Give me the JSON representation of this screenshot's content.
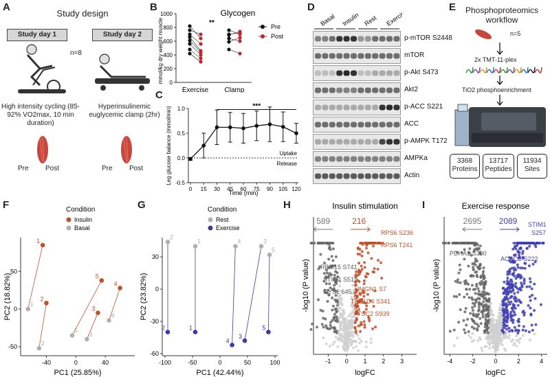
{
  "panels": {
    "A": "A",
    "B": "B",
    "C": "C",
    "D": "D",
    "E": "E",
    "F": "F",
    "G": "G",
    "H": "H",
    "I": "I"
  },
  "panelA": {
    "title": "Study design",
    "day1": "Study day 1",
    "day2": "Study day 2",
    "n": "n=8",
    "day1_desc": "High intensity cycling (85-92% VO2max, 10 min duration)",
    "day2_desc": "Hyperinsulinemic euglycemic clamp (2hr)",
    "pre": "Pre",
    "post": "Post"
  },
  "panelE": {
    "title": "Phosphoproteomics workflow",
    "n": "n=5",
    "step1": "2x TMT-11-plex",
    "step2": "TiO2 phosphoenrichment",
    "stats": [
      {
        "value": "3368",
        "label": "Proteins"
      },
      {
        "value": "13717",
        "label": "Peptides"
      },
      {
        "value": "11934",
        "label": "Sites"
      }
    ]
  },
  "panelD": {
    "groups": [
      "Basal",
      "Insulin",
      "Rest",
      "Exercise"
    ],
    "blots": [
      "p-mTOR S2448",
      "mTOR",
      "p-Akt S473",
      "Akt2",
      "p-ACC S221",
      "ACC",
      "p-AMPK T172",
      "AMPKa",
      "Actin"
    ]
  },
  "chart_data": [
    {
      "id": "B",
      "type": "scatter",
      "title": "Glycogen",
      "ylabel": "mmol/kg dry weight muscle",
      "xlabel": "",
      "categories": [
        "Exercise",
        "Clamp"
      ],
      "ylim": [
        0,
        1000
      ],
      "yticks": [
        "0",
        "200",
        "400",
        "600",
        "800",
        "1000"
      ],
      "legend": [
        {
          "name": "Pre",
          "color": "#111111"
        },
        {
          "name": "Post",
          "color": "#c1272d"
        }
      ],
      "significance": "**",
      "pairs": {
        "Exercise": [
          [
            820,
            640
          ],
          [
            760,
            700
          ],
          [
            700,
            560
          ],
          [
            660,
            460
          ],
          [
            610,
            440
          ],
          [
            560,
            400
          ],
          [
            480,
            350
          ],
          [
            420,
            300
          ]
        ],
        "Clamp": [
          [
            760,
            700
          ],
          [
            700,
            720
          ],
          [
            690,
            740
          ],
          [
            640,
            600
          ],
          [
            590,
            650
          ],
          [
            480,
            420
          ]
        ]
      }
    },
    {
      "id": "C",
      "type": "line",
      "ylabel": "Leg glucose balance (mmol/min)",
      "xlabel": "Time (min)",
      "x": [
        0,
        15,
        30,
        45,
        60,
        75,
        90,
        105,
        120
      ],
      "y": [
        -0.02,
        0.25,
        0.62,
        0.62,
        0.6,
        0.65,
        0.68,
        0.63,
        0.5
      ],
      "err": [
        0.03,
        0.25,
        0.35,
        0.3,
        0.3,
        0.3,
        0.35,
        0.3,
        0.2
      ],
      "xlim": [
        0,
        120
      ],
      "ylim": [
        -0.5,
        1.0
      ],
      "yticks": [
        "-0.5",
        "0.0",
        "0.5",
        "1.0"
      ],
      "xticks": [
        "0",
        "15",
        "30",
        "45",
        "60",
        "75",
        "90",
        "105",
        "120"
      ],
      "significance": "***",
      "annotations": [
        "Uptake",
        "Release"
      ]
    },
    {
      "id": "F",
      "type": "scatter",
      "legend_title": "Condition",
      "legend": [
        {
          "name": "Insulin",
          "color": "#c0502a"
        },
        {
          "name": "Basal",
          "color": "#b0b0b0"
        }
      ],
      "xlabel": "PC1 (25.85%)",
      "ylabel": "PC2 (18.82%)",
      "xticks": [
        "-40",
        "0",
        "40"
      ],
      "yticks": [
        "-50",
        "0",
        "50"
      ],
      "xlim": [
        -75,
        80
      ],
      "ylim": [
        -62,
        95
      ],
      "points": [
        {
          "subject": "1",
          "basal": [
            -65,
            0
          ],
          "insulin": [
            -45,
            85
          ]
        },
        {
          "subject": "2",
          "basal": [
            -50,
            -52
          ],
          "insulin": [
            -40,
            8
          ]
        },
        {
          "subject": "3",
          "basal": [
            15,
            -40
          ],
          "insulin": [
            30,
            -5
          ]
        },
        {
          "subject": "4",
          "basal": [
            45,
            -15
          ],
          "insulin": [
            60,
            28
          ]
        },
        {
          "subject": "5",
          "basal": [
            -5,
            -35
          ],
          "insulin": [
            35,
            38
          ]
        }
      ]
    },
    {
      "id": "G",
      "type": "scatter",
      "legend_title": "Condition",
      "legend": [
        {
          "name": "Rest",
          "color": "#b0b0b0"
        },
        {
          "name": "Exercise",
          "color": "#3a3aa0"
        }
      ],
      "xlabel": "PC1 (42.44%)",
      "ylabel": "PC2 (23.82%)",
      "xticks": [
        "-100",
        "-50",
        "0",
        "50",
        "100"
      ],
      "yticks": [
        "-60",
        "-30",
        "0",
        "30"
      ],
      "xlim": [
        -105,
        105
      ],
      "ylim": [
        -62,
        48
      ],
      "points": [
        {
          "subject": "1",
          "rest": [
            -45,
            40
          ],
          "exercise": [
            -45,
            -40
          ]
        },
        {
          "subject": "2",
          "rest": [
            -95,
            44
          ],
          "exercise": [
            -95,
            -40
          ]
        },
        {
          "subject": "3",
          "rest": [
            75,
            40
          ],
          "exercise": [
            45,
            -48
          ]
        },
        {
          "subject": "4",
          "rest": [
            28,
            40
          ],
          "exercise": [
            22,
            -52
          ]
        },
        {
          "subject": "5",
          "rest": [
            90,
            32
          ],
          "exercise": [
            88,
            -40
          ]
        }
      ]
    },
    {
      "id": "H",
      "type": "scatter",
      "title": "Insulin stimulation",
      "xlabel": "logFC",
      "ylabel": "-log10 (P value)",
      "xticks": [
        "-1",
        "0",
        "1",
        "2",
        "3"
      ],
      "xlim": [
        -1.8,
        3.8
      ],
      "counts": {
        "down": "589",
        "up": "216"
      },
      "labels_up": [
        "RPS6 S236",
        "RPS6 T241",
        "HMGN1 S7",
        "TBC1D4 S341",
        "TSC2 S939"
      ],
      "labels_down": [
        "RBM15 S741",
        "STIM1 S519",
        "GYS1 645"
      ]
    },
    {
      "id": "I",
      "type": "scatter",
      "title": "Exercise response",
      "xlabel": "logFC",
      "ylabel": "-log10 (P value)",
      "xticks": [
        "-4",
        "-2",
        "0",
        "2",
        "4"
      ],
      "xlim": [
        -4.5,
        4.5
      ],
      "counts": {
        "down": "2695",
        "up": "2089"
      },
      "labels_up": [
        "STIM1 S257",
        "ACACB S222"
      ],
      "labels_down": [
        "PDHA1 S300"
      ]
    }
  ]
}
